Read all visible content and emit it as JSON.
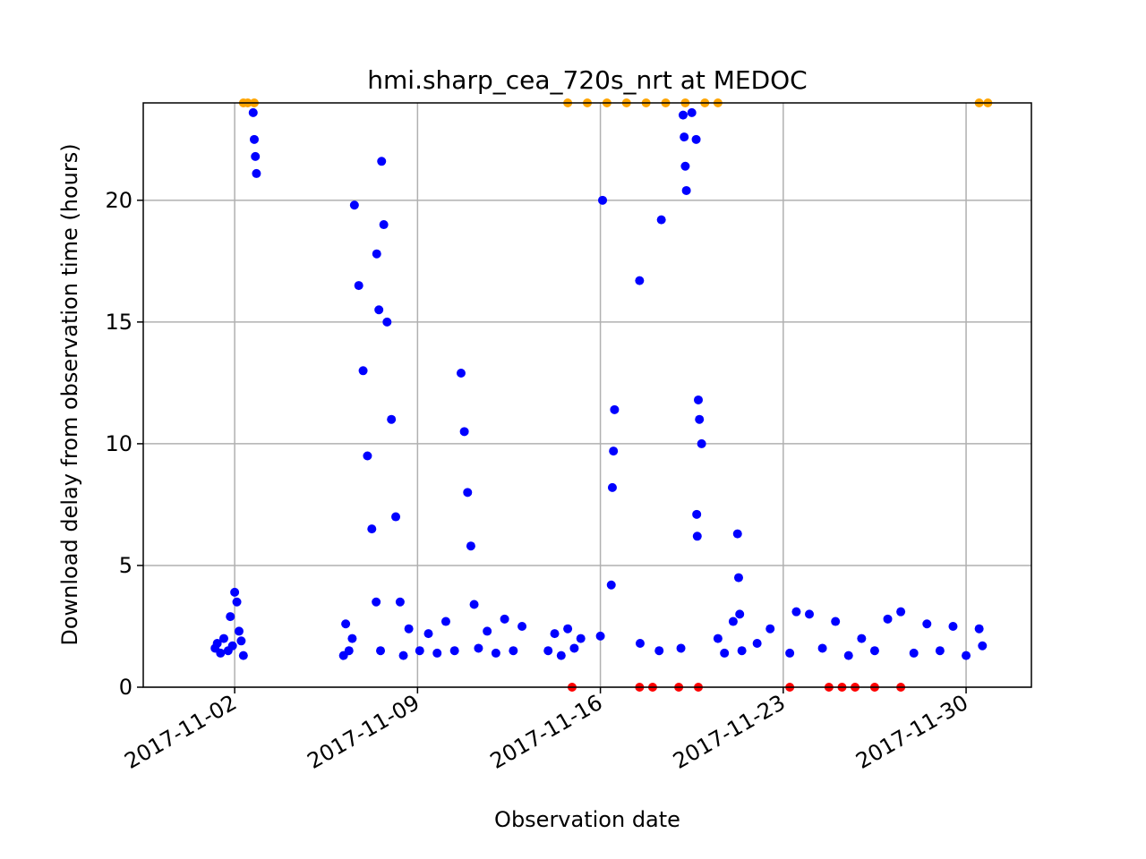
{
  "chart_data": {
    "type": "scatter",
    "title": "hmi.sharp_cea_720s_nrt at MEDOC",
    "xlabel": "Observation date",
    "ylabel": "Download delay from observation time (hours)",
    "x_axis_type": "date",
    "xlim": [
      "2017-10-29T12:00",
      "2017-12-02T12:00"
    ],
    "ylim": [
      0,
      24
    ],
    "xticks": [
      "2017-11-02",
      "2017-11-09",
      "2017-11-16",
      "2017-11-23",
      "2017-11-30"
    ],
    "yticks": [
      0,
      5,
      10,
      15,
      20
    ],
    "grid": true,
    "colors": {
      "on_time": "#0000ff",
      "capped": "#ffa500",
      "zero": "#ff0000"
    },
    "series": [
      {
        "color": "#0000ff",
        "points": [
          [
            "2017-11-01T06:00",
            1.6
          ],
          [
            "2017-11-01T08:00",
            1.8
          ],
          [
            "2017-11-01T11:00",
            1.4
          ],
          [
            "2017-11-01T14:00",
            2.0
          ],
          [
            "2017-11-01T18:00",
            1.5
          ],
          [
            "2017-11-01T20:00",
            2.9
          ],
          [
            "2017-11-01T22:00",
            1.7
          ],
          [
            "2017-11-02T00:00",
            3.9
          ],
          [
            "2017-11-02T02:00",
            3.5
          ],
          [
            "2017-11-02T04:00",
            2.3
          ],
          [
            "2017-11-02T06:00",
            1.9
          ],
          [
            "2017-11-02T08:00",
            1.3
          ],
          [
            "2017-11-02T17:00",
            23.6
          ],
          [
            "2017-11-02T18:00",
            22.5
          ],
          [
            "2017-11-02T19:00",
            21.8
          ],
          [
            "2017-11-02T20:00",
            21.1
          ],
          [
            "2017-11-06T04:00",
            1.3
          ],
          [
            "2017-11-06T06:00",
            2.6
          ],
          [
            "2017-11-06T09:00",
            1.5
          ],
          [
            "2017-11-06T12:00",
            2.0
          ],
          [
            "2017-11-06T14:00",
            19.8
          ],
          [
            "2017-11-06T18:00",
            16.5
          ],
          [
            "2017-11-06T22:00",
            13.0
          ],
          [
            "2017-11-07T02:00",
            9.5
          ],
          [
            "2017-11-07T06:00",
            6.5
          ],
          [
            "2017-11-07T10:00",
            3.5
          ],
          [
            "2017-11-07T14:00",
            1.5
          ],
          [
            "2017-11-07T10:30",
            17.8
          ],
          [
            "2017-11-07T12:30",
            15.5
          ],
          [
            "2017-11-07T15:00",
            21.6
          ],
          [
            "2017-11-07T17:00",
            19.0
          ],
          [
            "2017-11-07T20:00",
            15.0
          ],
          [
            "2017-11-08T00:00",
            11.0
          ],
          [
            "2017-11-08T04:00",
            7.0
          ],
          [
            "2017-11-08T08:00",
            3.5
          ],
          [
            "2017-11-08T11:00",
            1.3
          ],
          [
            "2017-11-08T16:00",
            2.4
          ],
          [
            "2017-11-09T02:00",
            1.5
          ],
          [
            "2017-11-09T10:00",
            2.2
          ],
          [
            "2017-11-09T18:00",
            1.4
          ],
          [
            "2017-11-10T02:00",
            2.7
          ],
          [
            "2017-11-10T10:00",
            1.5
          ],
          [
            "2017-11-10T16:00",
            12.9
          ],
          [
            "2017-11-10T19:00",
            10.5
          ],
          [
            "2017-11-10T22:00",
            8.0
          ],
          [
            "2017-11-11T01:00",
            5.8
          ],
          [
            "2017-11-11T04:00",
            3.4
          ],
          [
            "2017-11-11T08:00",
            1.6
          ],
          [
            "2017-11-11T16:00",
            2.3
          ],
          [
            "2017-11-12T00:00",
            1.4
          ],
          [
            "2017-11-12T08:00",
            2.8
          ],
          [
            "2017-11-12T16:00",
            1.5
          ],
          [
            "2017-11-13T00:00",
            2.5
          ],
          [
            "2017-11-14T00:00",
            1.5
          ],
          [
            "2017-11-14T06:00",
            2.2
          ],
          [
            "2017-11-14T12:00",
            1.3
          ],
          [
            "2017-11-14T18:00",
            2.4
          ],
          [
            "2017-11-15T00:00",
            1.6
          ],
          [
            "2017-11-15T06:00",
            2.0
          ],
          [
            "2017-11-16T00:00",
            2.1
          ],
          [
            "2017-11-16T02:00",
            20.0
          ],
          [
            "2017-11-16T10:00",
            4.2
          ],
          [
            "2017-11-16T11:00",
            8.2
          ],
          [
            "2017-11-16T12:00",
            9.7
          ],
          [
            "2017-11-16T13:00",
            11.4
          ],
          [
            "2017-11-17T12:00",
            16.7
          ],
          [
            "2017-11-17T12:30",
            1.8
          ],
          [
            "2017-11-18T06:00",
            1.5
          ],
          [
            "2017-11-18T08:00",
            19.2
          ],
          [
            "2017-11-19T02:00",
            1.6
          ],
          [
            "2017-11-19T04:00",
            23.5
          ],
          [
            "2017-11-19T05:00",
            22.6
          ],
          [
            "2017-11-19T06:00",
            21.4
          ],
          [
            "2017-11-19T07:00",
            20.4
          ],
          [
            "2017-11-19T12:00",
            23.6
          ],
          [
            "2017-11-19T16:00",
            22.5
          ],
          [
            "2017-11-19T18:00",
            11.8
          ],
          [
            "2017-11-19T19:00",
            11.0
          ],
          [
            "2017-11-19T21:00",
            10.0
          ],
          [
            "2017-11-19T16:30",
            7.1
          ],
          [
            "2017-11-19T17:00",
            6.2
          ],
          [
            "2017-11-20T12:00",
            2.0
          ],
          [
            "2017-11-20T18:00",
            1.4
          ],
          [
            "2017-11-21T02:00",
            2.7
          ],
          [
            "2017-11-21T06:00",
            6.3
          ],
          [
            "2017-11-21T07:00",
            4.5
          ],
          [
            "2017-11-21T08:00",
            3.0
          ],
          [
            "2017-11-21T10:00",
            1.5
          ],
          [
            "2017-11-22T00:00",
            1.8
          ],
          [
            "2017-11-22T12:00",
            2.4
          ],
          [
            "2017-11-23T06:00",
            1.4
          ],
          [
            "2017-11-23T12:00",
            3.1
          ],
          [
            "2017-11-24T00:00",
            3.0
          ],
          [
            "2017-11-24T12:00",
            1.6
          ],
          [
            "2017-11-25T00:00",
            2.7
          ],
          [
            "2017-11-25T12:00",
            1.3
          ],
          [
            "2017-11-26T00:00",
            2.0
          ],
          [
            "2017-11-26T12:00",
            1.5
          ],
          [
            "2017-11-27T00:00",
            2.8
          ],
          [
            "2017-11-27T12:00",
            3.1
          ],
          [
            "2017-11-28T00:00",
            1.4
          ],
          [
            "2017-11-28T12:00",
            2.6
          ],
          [
            "2017-11-29T00:00",
            1.5
          ],
          [
            "2017-11-29T12:00",
            2.5
          ],
          [
            "2017-11-30T00:00",
            1.3
          ],
          [
            "2017-11-30T12:00",
            2.4
          ],
          [
            "2017-11-30T15:00",
            1.7
          ]
        ]
      },
      {
        "color": "#ffa500",
        "points": [
          [
            "2017-11-02T08:00",
            24
          ],
          [
            "2017-11-02T12:00",
            24
          ],
          [
            "2017-11-02T18:00",
            24
          ],
          [
            "2017-11-14T18:00",
            24
          ],
          [
            "2017-11-15T12:00",
            24
          ],
          [
            "2017-11-16T06:00",
            24
          ],
          [
            "2017-11-17T00:00",
            24
          ],
          [
            "2017-11-17T18:00",
            24
          ],
          [
            "2017-11-18T12:00",
            24
          ],
          [
            "2017-11-19T06:00",
            24
          ],
          [
            "2017-11-20T00:00",
            24
          ],
          [
            "2017-11-20T12:00",
            24
          ],
          [
            "2017-11-30T12:00",
            24
          ],
          [
            "2017-11-30T20:00",
            24
          ]
        ]
      },
      {
        "color": "#ff0000",
        "points": [
          [
            "2017-11-14T22:00",
            0
          ],
          [
            "2017-11-17T12:00",
            0
          ],
          [
            "2017-11-18T00:00",
            0
          ],
          [
            "2017-11-19T00:00",
            0
          ],
          [
            "2017-11-19T18:00",
            0
          ],
          [
            "2017-11-23T06:00",
            0
          ],
          [
            "2017-11-24T18:00",
            0
          ],
          [
            "2017-11-25T06:00",
            0
          ],
          [
            "2017-11-25T18:00",
            0
          ],
          [
            "2017-11-26T12:00",
            0
          ],
          [
            "2017-11-27T12:00",
            0
          ]
        ]
      }
    ]
  }
}
